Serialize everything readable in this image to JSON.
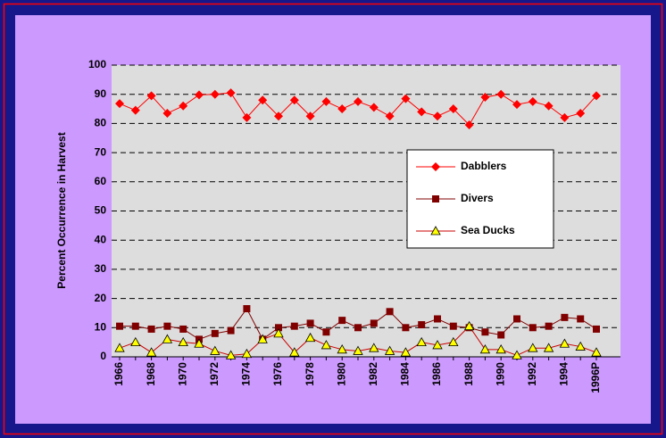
{
  "chart_data": {
    "type": "line",
    "y_label": "Percent Occurrence in Harvest",
    "categories": [
      "1966",
      null,
      "1968",
      null,
      "1970",
      null,
      "1972",
      null,
      "1974",
      null,
      "1976",
      null,
      "1978",
      null,
      "1980",
      null,
      "1982",
      null,
      "1984",
      null,
      "1986",
      null,
      "1988",
      null,
      "1990",
      null,
      "1992",
      null,
      "1994",
      null,
      "1996P"
    ],
    "series": [
      {
        "name": "Dabblers",
        "color": "#ff0000",
        "marker": "diamond",
        "values": [
          86.8,
          84.5,
          89.5,
          83.5,
          86,
          89.8,
          90,
          90.5,
          82,
          88,
          82.5,
          88,
          82.5,
          87.5,
          85,
          87.5,
          85.5,
          82.5,
          88.5,
          84,
          82.5,
          85,
          79.5,
          89,
          90,
          86.5,
          87.5,
          86,
          82,
          83.5,
          89.5
        ]
      },
      {
        "name": "Divers",
        "color": "#800000",
        "marker": "square",
        "values": [
          10.5,
          10.5,
          9.5,
          10.5,
          9.5,
          6,
          8,
          9,
          16.5,
          6,
          10,
          10.5,
          11.5,
          8.5,
          12.5,
          10,
          11.5,
          15.5,
          10,
          11,
          13,
          10.5,
          10,
          8.5,
          7.5,
          13,
          10,
          10.5,
          13.5,
          13,
          9.5
        ]
      },
      {
        "name": "Sea Ducks",
        "color": "#ffff00",
        "marker": "triangle",
        "values": [
          3,
          5,
          1.5,
          6,
          5,
          4.5,
          2,
          0.5,
          1,
          6,
          8,
          1.5,
          6.5,
          4,
          2.5,
          2,
          3,
          2,
          1.5,
          5,
          4,
          5,
          10.5,
          2.5,
          2.5,
          0.5,
          3,
          3,
          4.5,
          3.5,
          1.5
        ]
      }
    ],
    "ylim": [
      0,
      100
    ],
    "yticks": [
      0,
      10,
      20,
      30,
      40,
      50,
      60,
      70,
      80,
      90,
      100
    ],
    "grid": true
  }
}
